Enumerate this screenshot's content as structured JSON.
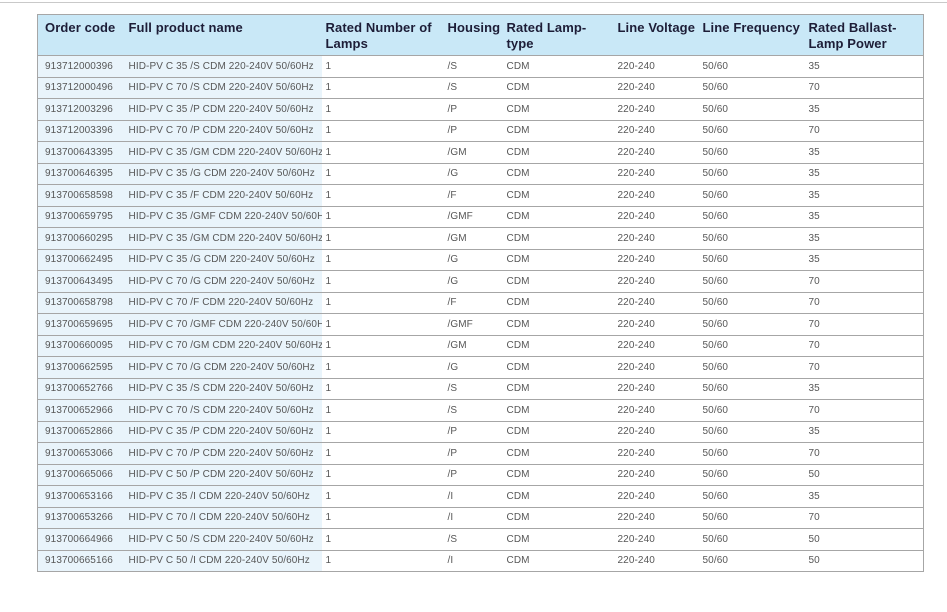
{
  "colors": {
    "header_bg": "#c9e8f7",
    "header_text": "#1d1d37",
    "first_columns_bg": "#e9f4fb",
    "body_text": "#575757",
    "border": "#a6a6a6",
    "page_bg": "#ffffff",
    "top_rule": "#c9c9c9"
  },
  "table": {
    "columns": [
      {
        "key": "order-code",
        "label": "Order code"
      },
      {
        "key": "full-product-name",
        "label": "Full product name"
      },
      {
        "key": "rated-number-of-lamps",
        "label": "Rated Number of Lamps"
      },
      {
        "key": "housing",
        "label": "Housing"
      },
      {
        "key": "rated-lamp-type",
        "label": "Rated Lamp-type"
      },
      {
        "key": "line-voltage",
        "label": "Line Voltage"
      },
      {
        "key": "line-frequency",
        "label": "Line Frequency"
      },
      {
        "key": "rated-ballast-lamp-power",
        "label": "Rated Ballast-Lamp Power"
      }
    ],
    "rows": [
      [
        "913712000396",
        "HID-PV C 35 /S CDM 220-240V 50/60Hz",
        "1",
        "/S",
        "CDM",
        "220-240",
        "50/60",
        "35"
      ],
      [
        "913712000496",
        "HID-PV C 70 /S CDM 220-240V 50/60Hz",
        "1",
        "/S",
        "CDM",
        "220-240",
        "50/60",
        "70"
      ],
      [
        "913712003296",
        "HID-PV C 35 /P CDM 220-240V 50/60Hz",
        "1",
        "/P",
        "CDM",
        "220-240",
        "50/60",
        "35"
      ],
      [
        "913712003396",
        "HID-PV C 70 /P CDM 220-240V 50/60Hz",
        "1",
        "/P",
        "CDM",
        "220-240",
        "50/60",
        "70"
      ],
      [
        "913700643395",
        "HID-PV C 35 /GM CDM 220-240V 50/60Hz",
        "1",
        "/GM",
        "CDM",
        "220-240",
        "50/60",
        "35"
      ],
      [
        "913700646395",
        "HID-PV C 35 /G CDM 220-240V 50/60Hz",
        "1",
        "/G",
        "CDM",
        "220-240",
        "50/60",
        "35"
      ],
      [
        "913700658598",
        "HID-PV C 35 /F CDM 220-240V 50/60Hz",
        "1",
        "/F",
        "CDM",
        "220-240",
        "50/60",
        "35"
      ],
      [
        "913700659795",
        "HID-PV C 35 /GMF CDM 220-240V 50/60Hz",
        "1",
        "/GMF",
        "CDM",
        "220-240",
        "50/60",
        "35"
      ],
      [
        "913700660295",
        "HID-PV C 35 /GM CDM 220-240V 50/60Hz",
        "1",
        "/GM",
        "CDM",
        "220-240",
        "50/60",
        "35"
      ],
      [
        "913700662495",
        "HID-PV C 35 /G CDM 220-240V 50/60Hz",
        "1",
        "/G",
        "CDM",
        "220-240",
        "50/60",
        "35"
      ],
      [
        "913700643495",
        "HID-PV C 70 /G CDM 220-240V 50/60Hz",
        "1",
        "/G",
        "CDM",
        "220-240",
        "50/60",
        "70"
      ],
      [
        "913700658798",
        "HID-PV C 70 /F CDM 220-240V 50/60Hz",
        "1",
        "/F",
        "CDM",
        "220-240",
        "50/60",
        "70"
      ],
      [
        "913700659695",
        "HID-PV C 70 /GMF CDM 220-240V 50/60Hz",
        "1",
        "/GMF",
        "CDM",
        "220-240",
        "50/60",
        "70"
      ],
      [
        "913700660095",
        "HID-PV C 70 /GM CDM 220-240V 50/60Hz",
        "1",
        "/GM",
        "CDM",
        "220-240",
        "50/60",
        "70"
      ],
      [
        "913700662595",
        "HID-PV C 70 /G CDM 220-240V 50/60Hz",
        "1",
        "/G",
        "CDM",
        "220-240",
        "50/60",
        "70"
      ],
      [
        "913700652766",
        "HID-PV C 35 /S CDM 220-240V 50/60Hz",
        "1",
        "/S",
        "CDM",
        "220-240",
        "50/60",
        "35"
      ],
      [
        "913700652966",
        "HID-PV C 70 /S CDM 220-240V 50/60Hz",
        "1",
        "/S",
        "CDM",
        "220-240",
        "50/60",
        "70"
      ],
      [
        "913700652866",
        "HID-PV C 35 /P CDM 220-240V 50/60Hz",
        "1",
        "/P",
        "CDM",
        "220-240",
        "50/60",
        "35"
      ],
      [
        "913700653066",
        "HID-PV C 70 /P CDM 220-240V 50/60Hz",
        "1",
        "/P",
        "CDM",
        "220-240",
        "50/60",
        "70"
      ],
      [
        "913700665066",
        "HID-PV C 50 /P CDM 220-240V 50/60Hz",
        "1",
        "/P",
        "CDM",
        "220-240",
        "50/60",
        "50"
      ],
      [
        "913700653166",
        "HID-PV C 35 /I CDM 220-240V 50/60Hz",
        "1",
        "/I",
        "CDM",
        "220-240",
        "50/60",
        "35"
      ],
      [
        "913700653266",
        "HID-PV C 70 /I CDM 220-240V 50/60Hz",
        "1",
        "/I",
        "CDM",
        "220-240",
        "50/60",
        "70"
      ],
      [
        "913700664966",
        "HID-PV C 50 /S CDM 220-240V 50/60Hz",
        "1",
        "/S",
        "CDM",
        "220-240",
        "50/60",
        "50"
      ],
      [
        "913700665166",
        "HID-PV C 50 /I CDM 220-240V 50/60Hz",
        "1",
        "/I",
        "CDM",
        "220-240",
        "50/60",
        "50"
      ]
    ]
  }
}
